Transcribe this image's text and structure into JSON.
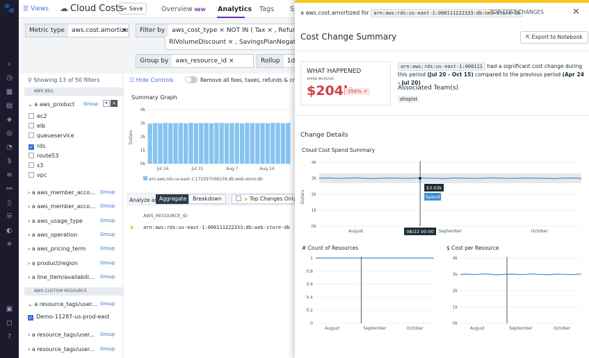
{
  "header": {
    "views": "Views",
    "title": "Cloud Costs",
    "save": "Save",
    "tabs": [
      {
        "label": "Overview",
        "badge": "NEW"
      },
      {
        "label": "Analytics"
      },
      {
        "label": "Tags"
      },
      {
        "label": "S"
      }
    ]
  },
  "filters": {
    "metric_label": "Metric type",
    "metric_value": "aws.cost.amortized",
    "filter_label": "Filter by",
    "filter_line1": "aws_cost_type × NOT IN ( Tax × , Refund × , Cre",
    "filter_line2": "RIVolumeDiscount × , SavingsPlanNegation × ) A",
    "group_label": "Group by",
    "group_value": "aws_resource_id",
    "rollup_label": "Rollup",
    "rollup_value": "1d"
  },
  "sidebar": {
    "showing": "Showing 13 of 50 filters",
    "bill_section": "AWS BILL",
    "product": "aws_product",
    "group": "Group",
    "products": [
      "ec2",
      "elb",
      "queueservice",
      "rds",
      "route53",
      "s3",
      "vpc"
    ],
    "products_checked": [
      false,
      false,
      false,
      true,
      false,
      false,
      false
    ],
    "facets": [
      "aws_member_acco...",
      "aws_member_acco...",
      "aws_usage_type",
      "aws_operation",
      "aws_pricing_term",
      "product/region",
      "line_item/availabili..."
    ],
    "custom_section": "AWS CUSTOM RESOURCE",
    "custom_facets": [
      "resource_tags/user...",
      "resource_tags/user...",
      "resource_tags/user..."
    ],
    "custom_value": "Demo-11287-us-prod-east"
  },
  "main": {
    "hide_controls": "Hide Controls",
    "remove_fees": "Remove all fees, taxes, refunds & credits",
    "summary_graph": "Summary Graph",
    "y_label": "Dollars",
    "y_ticks": [
      "4k",
      "3k",
      "2k",
      "1k",
      "0k"
    ],
    "x_ticks": [
      "Jul 24",
      "Jul 31",
      "Aug 7",
      "Aug 14"
    ],
    "legend": "arn:aws:rds:us-east-1:172597598159:db:web-store-db",
    "analyze_as": "Analyze as",
    "aggregate": "Aggregate",
    "breakdown": "Breakdown",
    "top_changes": "Top Changes Only",
    "col_header": "AWS_RESOURCE_ID",
    "row_value": "arn:aws:rds:us-east-1:000111222333:db:web-store-db"
  },
  "panel": {
    "metric": "aws.cost.amortized",
    "for": "for",
    "resource": "arn:aws:rds:us-east-1:000111222333:db:web-store-db",
    "top_changes": "TOP COST CHANGES",
    "title": "Cost Change Summary",
    "export": "Export to Notebook",
    "what_happened": "WHAT HAPPENED",
    "spend_increase": "SPEND INCREASE",
    "amount": "$204k",
    "pct": "358%",
    "desc_resource": "arn:aws:rds:us-east-1:000111",
    "desc_1": "had a significant cost change during this",
    "desc_2": "period",
    "desc_period1": "(Jul 20 - Oct 15)",
    "desc_3": "compared to the previous period",
    "desc_period2": "(Apr 24 - Jul 20)",
    "teams_label": "Associated Team(s)",
    "team": "shopist",
    "change_details": "Change Details",
    "spend_summary": "Cloud Cost Spend Summary",
    "y_label": "Dollars",
    "y_ticks": [
      "4k",
      "3k",
      "2k",
      "1k",
      "0k"
    ],
    "x_ticks": [
      "August",
      "September",
      "October"
    ],
    "tooltip_value": "$3.03k",
    "tooltip_series": "Spend",
    "cursor_date": "08/22 00:00",
    "count_title": "# Count of Resources",
    "count_ticks": [
      "1",
      "0.8",
      "0.6",
      "0.4",
      "0.2",
      "0"
    ],
    "cost_title": "$ Cost per Resource",
    "cost_ticks": [
      "4k",
      "3k",
      "2k",
      "1k",
      "0k"
    ]
  },
  "colors": {
    "accent": "#632ca6",
    "bar": "#88c3f0",
    "line": "#3d8fd6",
    "amount": "#d33f49"
  },
  "chart_data": [
    {
      "type": "bar",
      "title": "Summary Graph",
      "ylabel": "Dollars",
      "ylim": [
        0,
        4000
      ],
      "series": [
        {
          "name": "arn:aws:rds:us-east-1:172597598159:db:web-store-db",
          "values": [
            2950,
            3000,
            2980,
            3020,
            2990,
            3010,
            3000,
            2970,
            3030,
            2990,
            3000,
            3010,
            2980,
            3020,
            3000,
            2990,
            3010,
            3000,
            2980,
            3020,
            3000,
            2990,
            3010,
            2980,
            3020,
            3000,
            2990,
            3010
          ]
        }
      ]
    },
    {
      "type": "line",
      "title": "Cloud Cost Spend Summary",
      "ylabel": "Dollars",
      "ylim": [
        0,
        4000
      ],
      "series": [
        {
          "name": "Spend",
          "values": [
            3000,
            3020,
            2990,
            3010,
            3030,
            3000,
            2980,
            3010,
            3020,
            3000,
            2990,
            3030,
            3010,
            3000,
            2980,
            3020,
            3010,
            2990,
            3000,
            3030,
            3010,
            2990,
            3000,
            3020,
            3010,
            3000,
            2980,
            3010,
            3020,
            3000
          ]
        }
      ]
    },
    {
      "type": "line",
      "title": "# Count of Resources",
      "ylim": [
        0,
        1
      ],
      "series": [
        {
          "values": [
            1,
            1,
            1,
            1,
            1,
            1,
            1,
            1,
            1,
            1
          ]
        }
      ]
    },
    {
      "type": "line",
      "title": "$ Cost per Resource",
      "ylim": [
        0,
        4000
      ],
      "series": [
        {
          "values": [
            3000,
            3020,
            2990,
            3010,
            3030,
            3000,
            2980,
            3010,
            3020,
            3000,
            2990,
            3030,
            3010,
            3000,
            2980,
            3020,
            3010,
            2990,
            3000,
            3030
          ]
        }
      ]
    }
  ]
}
